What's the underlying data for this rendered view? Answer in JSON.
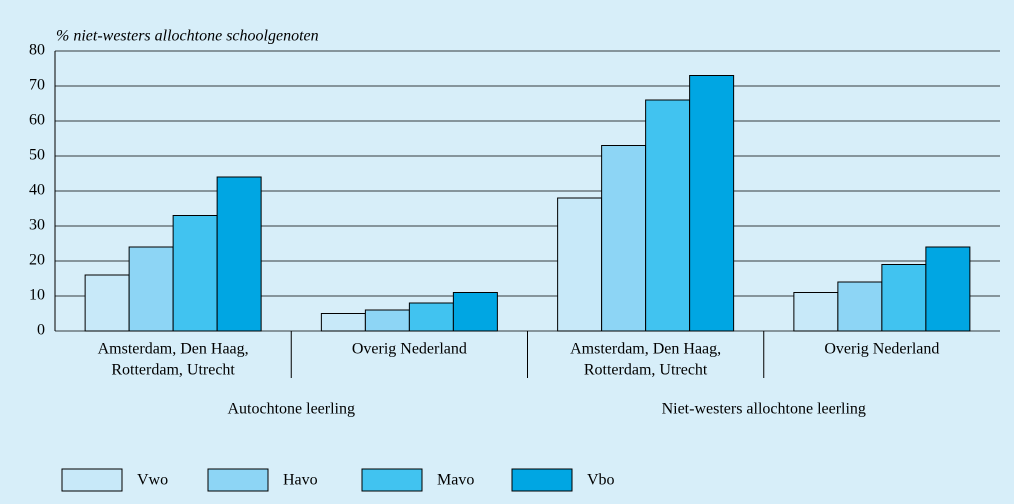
{
  "chart_data": {
    "type": "bar",
    "y_label": "% niet-westers allochtone schoolgenoten",
    "categories": [
      [
        "Amsterdam, Den Haag,",
        "Rotterdam, Utrecht"
      ],
      [
        "Overig Nederland"
      ],
      [
        "Amsterdam, Den Haag,",
        "Rotterdam, Utrecht"
      ],
      [
        "Overig Nederland"
      ]
    ],
    "groups": [
      "Autochtone leerling",
      "Niet-westers allochtone leerling"
    ],
    "series": [
      {
        "name": "Vwo",
        "color": "#c8e9f9",
        "values": [
          16,
          5,
          38,
          11
        ]
      },
      {
        "name": "Havo",
        "color": "#8dd5f5",
        "values": [
          24,
          6,
          53,
          14
        ]
      },
      {
        "name": "Mavo",
        "color": "#41c3f0",
        "values": [
          33,
          8,
          66,
          19
        ]
      },
      {
        "name": "Vbo",
        "color": "#00a6e3",
        "values": [
          44,
          11,
          73,
          24
        ]
      }
    ],
    "ylim": [
      0,
      80
    ],
    "yticks": [
      0,
      10,
      20,
      30,
      40,
      50,
      60,
      70,
      80
    ],
    "grid": true
  }
}
